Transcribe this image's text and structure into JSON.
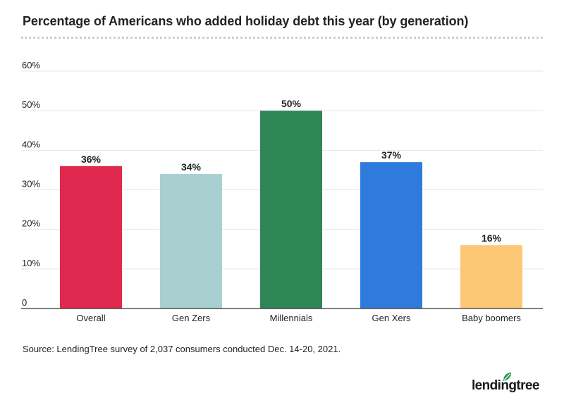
{
  "chart_data": {
    "type": "bar",
    "title": "Percentage of Americans who added holiday debt this year (by generation)",
    "categories": [
      "Overall",
      "Gen Zers",
      "Millennials",
      "Gen Xers",
      "Baby boomers"
    ],
    "values": [
      36,
      34,
      50,
      37,
      16
    ],
    "data_labels": [
      "36%",
      "34%",
      "50%",
      "37%",
      "16%"
    ],
    "colors": [
      "#e0294f",
      "#a8d0d0",
      "#2e8555",
      "#2f7bdc",
      "#fcc875"
    ],
    "ylim": [
      0,
      60
    ],
    "yticks": [
      0,
      10,
      20,
      30,
      40,
      50,
      60
    ],
    "ytick_labels": [
      "0",
      "10%",
      "20%",
      "30%",
      "40%",
      "50%",
      "60%"
    ],
    "xlabel": "",
    "ylabel": "",
    "grid": true,
    "legend": "none"
  },
  "source": "Source: LendingTree survey of 2,037 consumers conducted Dec. 14-20, 2021.",
  "logo": {
    "text": "lendingtree",
    "icon": "leaf-icon"
  }
}
